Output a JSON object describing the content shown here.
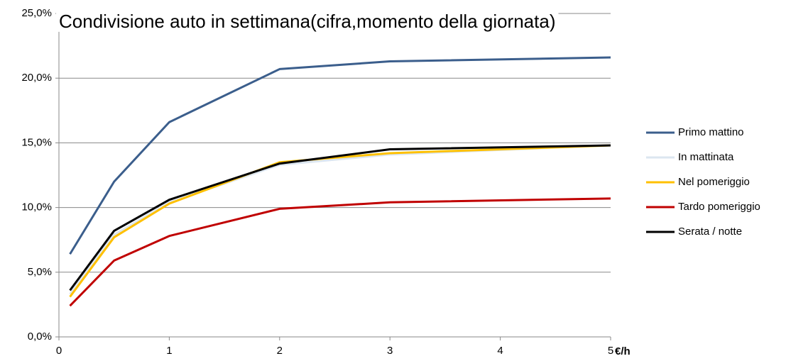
{
  "chart_data": {
    "type": "line",
    "title": "Condivisione auto in settimana(cifra,momento della giornata)",
    "x_label": "€/h",
    "x": [
      0.1,
      0.5,
      1,
      2,
      3,
      5
    ],
    "xlim": [
      0,
      5
    ],
    "xticks": [
      0,
      1,
      2,
      3,
      4,
      5
    ],
    "ylim": [
      0,
      25
    ],
    "yticks": [
      {
        "value": 0,
        "label": "0,0%"
      },
      {
        "value": 5,
        "label": "5,0%"
      },
      {
        "value": 10,
        "label": "10,0%"
      },
      {
        "value": 15,
        "label": "15,0%"
      },
      {
        "value": 20,
        "label": "20,0%"
      },
      {
        "value": 25,
        "label": "25,0%"
      }
    ],
    "grid": true,
    "legend": "right",
    "series": [
      {
        "name": "Primo mattino",
        "color": "#3b5e8c",
        "values": [
          6.4,
          12.0,
          16.6,
          20.7,
          21.3,
          21.6
        ]
      },
      {
        "name": "In mattinata",
        "color": "#dce6f0",
        "values": [
          3.3,
          7.9,
          10.4,
          13.3,
          14.1,
          14.8
        ]
      },
      {
        "name": "Nel pomeriggio",
        "color": "#ffc000",
        "values": [
          3.1,
          7.7,
          10.3,
          13.5,
          14.2,
          14.8
        ]
      },
      {
        "name": "Tardo pomeriggio",
        "color": "#c00000",
        "values": [
          2.4,
          5.9,
          7.8,
          9.9,
          10.4,
          10.7
        ]
      },
      {
        "name": "Serata / notte",
        "color": "#000000",
        "values": [
          3.6,
          8.2,
          10.6,
          13.4,
          14.5,
          14.8
        ]
      }
    ]
  }
}
